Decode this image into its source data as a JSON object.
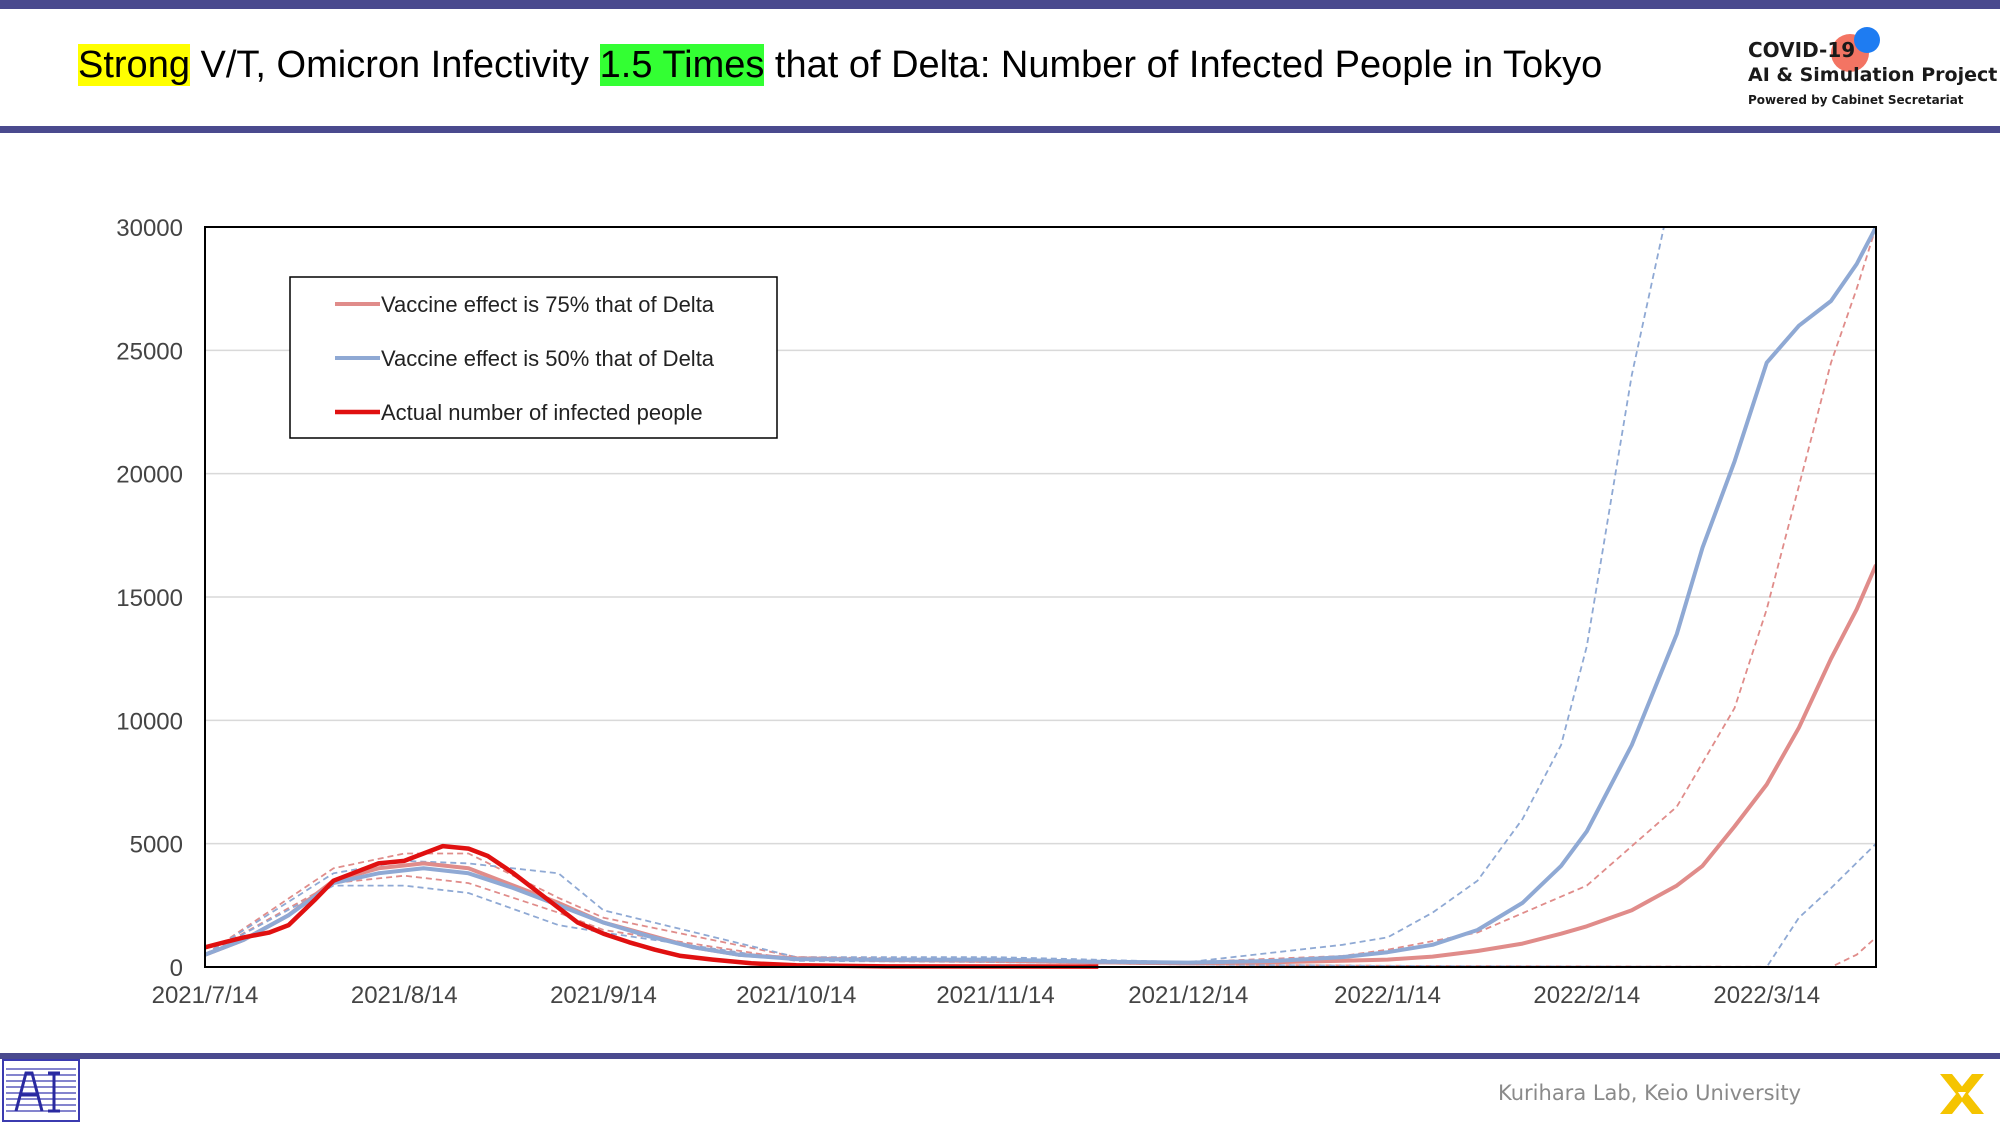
{
  "slide": {
    "title_part1": "Strong",
    "title_part2": " V/T, Omicron Infectivity ",
    "title_part3": "1.5 Times",
    "title_part4": " that of Delta: Number of Infected People in Tokyo",
    "highlight_colors": {
      "strong": "#ffff00",
      "times": "#33ff33"
    },
    "band_color": "#4a4a8e"
  },
  "logo": {
    "line1": "COVID-19",
    "line2": "AI & Simulation Project",
    "line3": "Powered by Cabinet Secretariat"
  },
  "footer": {
    "credit": "Kurihara Lab, Keio University",
    "left_icon": "lab-logo-icon",
    "right_icon": "x-logo-icon"
  },
  "chart_data": {
    "type": "line",
    "title": "",
    "xlabel": "",
    "ylabel": "",
    "x_start": "2021/7/14",
    "x_end": "2022/3/31",
    "xticks": [
      "2021/7/14",
      "2021/8/14",
      "2021/9/14",
      "2021/10/14",
      "2021/11/14",
      "2021/12/14",
      "2022/1/14",
      "2022/2/14",
      "2022/3/14"
    ],
    "ylim": [
      0,
      30000
    ],
    "yticks": [
      0,
      5000,
      10000,
      15000,
      20000,
      25000,
      30000
    ],
    "grid": "horizontal",
    "legend_position": "top-left",
    "series": [
      {
        "name": "Vaccine effect is 75% that of Delta",
        "color": "#e08c8a",
        "style": "solid",
        "points": [
          [
            "2021/7/14",
            500
          ],
          [
            "2021/7/20",
            1100
          ],
          [
            "2021/7/27",
            2100
          ],
          [
            "2021/8/3",
            3500
          ],
          [
            "2021/8/10",
            4000
          ],
          [
            "2021/8/17",
            4200
          ],
          [
            "2021/8/24",
            4000
          ],
          [
            "2021/8/31",
            3300
          ],
          [
            "2021/9/7",
            2600
          ],
          [
            "2021/9/14",
            1800
          ],
          [
            "2021/9/21",
            1300
          ],
          [
            "2021/9/28",
            800
          ],
          [
            "2021/10/5",
            500
          ],
          [
            "2021/10/14",
            350
          ],
          [
            "2021/10/28",
            280
          ],
          [
            "2021/11/14",
            270
          ],
          [
            "2021/11/28",
            200
          ],
          [
            "2021/12/14",
            150
          ],
          [
            "2021/12/28",
            200
          ],
          [
            "2022/1/7",
            250
          ],
          [
            "2022/1/14",
            300
          ],
          [
            "2022/1/21",
            420
          ],
          [
            "2022/1/28",
            650
          ],
          [
            "2022/2/4",
            950
          ],
          [
            "2022/2/10",
            1350
          ],
          [
            "2022/2/14",
            1650
          ],
          [
            "2022/2/21",
            2300
          ],
          [
            "2022/2/28",
            3300
          ],
          [
            "2022/3/4",
            4100
          ],
          [
            "2022/3/9",
            5700
          ],
          [
            "2022/3/14",
            7400
          ],
          [
            "2022/3/19",
            9700
          ],
          [
            "2022/3/24",
            12500
          ],
          [
            "2022/3/28",
            14500
          ],
          [
            "2022/3/31",
            16300
          ]
        ]
      },
      {
        "name": "Vaccine effect is 50% that of Delta",
        "color": "#8fa9d4",
        "style": "solid",
        "points": [
          [
            "2021/7/14",
            500
          ],
          [
            "2021/7/20",
            1100
          ],
          [
            "2021/7/27",
            2100
          ],
          [
            "2021/8/3",
            3400
          ],
          [
            "2021/8/10",
            3800
          ],
          [
            "2021/8/17",
            4000
          ],
          [
            "2021/8/24",
            3800
          ],
          [
            "2021/8/31",
            3200
          ],
          [
            "2021/9/7",
            2500
          ],
          [
            "2021/9/14",
            1800
          ],
          [
            "2021/9/21",
            1250
          ],
          [
            "2021/9/28",
            800
          ],
          [
            "2021/10/5",
            500
          ],
          [
            "2021/10/14",
            320
          ],
          [
            "2021/10/28",
            290
          ],
          [
            "2021/11/14",
            300
          ],
          [
            "2021/11/28",
            220
          ],
          [
            "2021/12/14",
            180
          ],
          [
            "2021/12/28",
            250
          ],
          [
            "2022/1/7",
            400
          ],
          [
            "2022/1/14",
            600
          ],
          [
            "2022/1/21",
            900
          ],
          [
            "2022/1/28",
            1500
          ],
          [
            "2022/2/4",
            2600
          ],
          [
            "2022/2/10",
            4100
          ],
          [
            "2022/2/14",
            5500
          ],
          [
            "2022/2/21",
            9000
          ],
          [
            "2022/2/28",
            13500
          ],
          [
            "2022/3/4",
            17000
          ],
          [
            "2022/3/9",
            20500
          ],
          [
            "2022/3/14",
            24500
          ],
          [
            "2022/3/19",
            26000
          ],
          [
            "2022/3/24",
            27000
          ],
          [
            "2022/3/28",
            28500
          ],
          [
            "2022/3/31",
            30000
          ]
        ]
      },
      {
        "name": "Actual number of infected people",
        "color": "#e01010",
        "style": "solid-bold",
        "points": [
          [
            "2021/7/14",
            800
          ],
          [
            "2021/7/17",
            1000
          ],
          [
            "2021/7/20",
            1200
          ],
          [
            "2021/7/24",
            1400
          ],
          [
            "2021/7/27",
            1700
          ],
          [
            "2021/7/31",
            2700
          ],
          [
            "2021/8/3",
            3500
          ],
          [
            "2021/8/7",
            3900
          ],
          [
            "2021/8/10",
            4200
          ],
          [
            "2021/8/14",
            4300
          ],
          [
            "2021/8/17",
            4600
          ],
          [
            "2021/8/20",
            4900
          ],
          [
            "2021/8/24",
            4800
          ],
          [
            "2021/8/27",
            4500
          ],
          [
            "2021/8/31",
            3800
          ],
          [
            "2021/9/4",
            3000
          ],
          [
            "2021/9/7",
            2400
          ],
          [
            "2021/9/10",
            1800
          ],
          [
            "2021/9/14",
            1350
          ],
          [
            "2021/9/18",
            1000
          ],
          [
            "2021/9/22",
            700
          ],
          [
            "2021/9/26",
            450
          ],
          [
            "2021/10/1",
            300
          ],
          [
            "2021/10/7",
            150
          ],
          [
            "2021/10/14",
            70
          ],
          [
            "2021/10/28",
            25
          ],
          [
            "2021/11/14",
            20
          ],
          [
            "2021/11/30",
            15
          ]
        ]
      }
    ],
    "band_lines": [
      {
        "series": "Vaccine effect is 75% that of Delta",
        "bound": "upper",
        "color": "#e08c8a",
        "style": "dashed",
        "points": [
          [
            "2021/7/14",
            500
          ],
          [
            "2021/8/3",
            4000
          ],
          [
            "2021/8/14",
            4600
          ],
          [
            "2021/8/24",
            4600
          ],
          [
            "2021/9/7",
            2800
          ],
          [
            "2021/9/14",
            2000
          ],
          [
            "2021/10/14",
            400
          ],
          [
            "2021/11/14",
            300
          ],
          [
            "2021/12/14",
            200
          ],
          [
            "2022/1/7",
            450
          ],
          [
            "2022/1/14",
            700
          ],
          [
            "2022/1/28",
            1400
          ],
          [
            "2022/2/14",
            3300
          ],
          [
            "2022/2/28",
            6500
          ],
          [
            "2022/3/9",
            10500
          ],
          [
            "2022/3/14",
            14500
          ],
          [
            "2022/3/19",
            19500
          ],
          [
            "2022/3/24",
            24500
          ],
          [
            "2022/3/28",
            27500
          ],
          [
            "2022/3/31",
            30000
          ]
        ]
      },
      {
        "series": "Vaccine effect is 75% that of Delta",
        "bound": "lower",
        "color": "#e08c8a",
        "style": "dashed",
        "points": [
          [
            "2021/7/14",
            500
          ],
          [
            "2021/8/3",
            3400
          ],
          [
            "2021/8/14",
            3700
          ],
          [
            "2021/8/24",
            3400
          ],
          [
            "2021/9/7",
            2200
          ],
          [
            "2021/9/14",
            1500
          ],
          [
            "2021/10/14",
            300
          ],
          [
            "2021/11/14",
            200
          ],
          [
            "2021/12/14",
            100
          ],
          [
            "2022/1/14",
            50
          ],
          [
            "2022/3/24",
            0
          ],
          [
            "2022/3/28",
            500
          ],
          [
            "2022/3/31",
            1200
          ]
        ]
      },
      {
        "series": "Vaccine effect is 50% that of Delta",
        "bound": "upper",
        "color": "#8fa9d4",
        "style": "dashed",
        "points": [
          [
            "2021/7/14",
            500
          ],
          [
            "2021/8/3",
            3800
          ],
          [
            "2021/8/14",
            4300
          ],
          [
            "2021/8/24",
            4200
          ],
          [
            "2021/9/7",
            3800
          ],
          [
            "2021/9/14",
            2300
          ],
          [
            "2021/10/14",
            400
          ],
          [
            "2021/11/14",
            400
          ],
          [
            "2021/12/14",
            200
          ],
          [
            "2022/1/7",
            900
          ],
          [
            "2022/1/14",
            1200
          ],
          [
            "2022/1/21",
            2200
          ],
          [
            "2022/1/28",
            3500
          ],
          [
            "2022/2/4",
            6000
          ],
          [
            "2022/2/10",
            9000
          ],
          [
            "2022/2/14",
            13000
          ],
          [
            "2022/2/21",
            24000
          ],
          [
            "2022/2/26",
            30000
          ]
        ]
      },
      {
        "series": "Vaccine effect is 50% that of Delta",
        "bound": "lower",
        "color": "#8fa9d4",
        "style": "dashed",
        "points": [
          [
            "2021/7/14",
            500
          ],
          [
            "2021/8/3",
            3300
          ],
          [
            "2021/8/14",
            3300
          ],
          [
            "2021/8/24",
            3000
          ],
          [
            "2021/9/7",
            1700
          ],
          [
            "2021/9/14",
            1400
          ],
          [
            "2021/10/14",
            250
          ],
          [
            "2021/11/14",
            200
          ],
          [
            "2021/12/14",
            100
          ],
          [
            "2022/1/14",
            40
          ],
          [
            "2022/3/14",
            0
          ],
          [
            "2022/3/19",
            2000
          ],
          [
            "2022/3/24",
            3200
          ],
          [
            "2022/3/31",
            5000
          ]
        ]
      }
    ]
  }
}
